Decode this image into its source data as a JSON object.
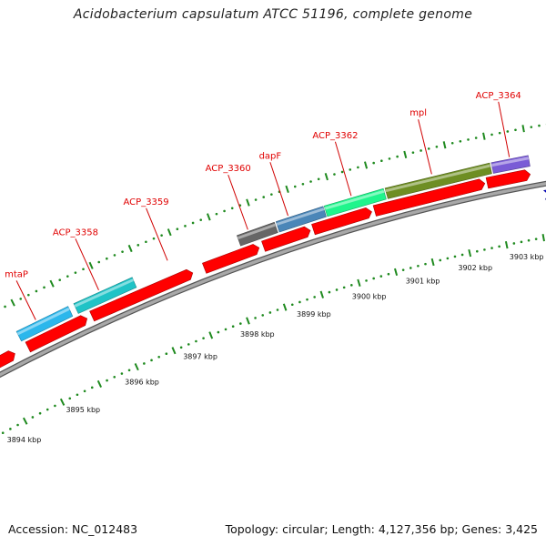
{
  "title": "Acidobacterium capsulatum ATCC 51196, complete genome",
  "footer": {
    "accession": "Accession: NC_012483",
    "summary": "Topology: circular; Length: 4,127,356 bp; Genes: 3,425"
  },
  "genes": [
    {
      "label": "mtaP",
      "color": "#2bb7ec"
    },
    {
      "label": "ACP_3358",
      "color": "#1fc3c6"
    },
    {
      "label": "ACP_3359",
      "color": "#ff0000"
    },
    {
      "label": "ACP_3360",
      "color": "#666666"
    },
    {
      "label": "dapF",
      "color": "#4a86b8"
    },
    {
      "label": "ACP_3362",
      "color": "#1ff58c"
    },
    {
      "label": "mpl",
      "color": "#6e8e23"
    },
    {
      "label": "ACP_3364",
      "color": "#7a5cd6"
    }
  ],
  "coordinate_ticks": [
    "3894 kbp",
    "3895 kbp",
    "3896 kbp",
    "3897 kbp",
    "3898 kbp",
    "3899 kbp",
    "3900 kbp",
    "3901 kbp",
    "3902 kbp",
    "3903 kbp"
  ],
  "colors": {
    "cds": "#ff0000",
    "reverse_gene": "#0000ee",
    "backbone": "#909090",
    "dotted_track": "#1f8a1f",
    "label": "#e00000"
  }
}
